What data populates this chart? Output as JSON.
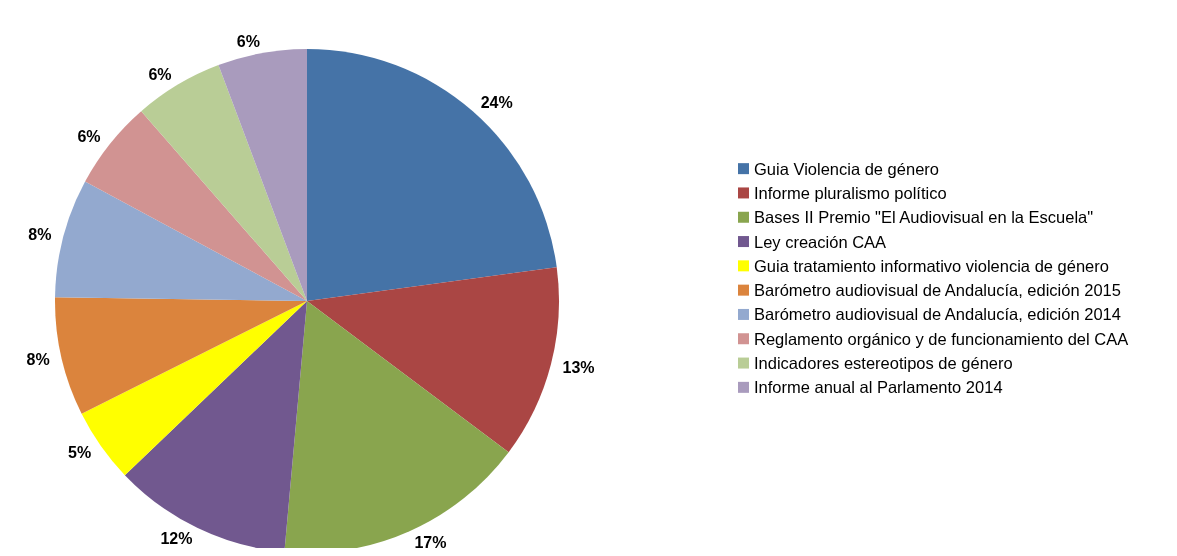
{
  "chart_data": {
    "type": "pie",
    "categories": [
      "Guia Violencia de género",
      "Informe pluralismo político",
      "Bases II Premio \"El Audiovisual en la Escuela\"",
      "Ley creación CAA",
      "Guia tratamiento informativo violencia de género",
      "Barómetro audiovisual de Andalucía, edición 2015",
      "Barómetro audiovisual de Andalucía, edición 2014",
      "Reglamento orgánico y de funcionamiento del CAA",
      "Indicadores estereotipos de género",
      "Informe anual al Parlamento 2014"
    ],
    "values": [
      24,
      13,
      17,
      12,
      5,
      8,
      8,
      6,
      6,
      6
    ],
    "value_labels": [
      "24%",
      "13%",
      "17%",
      "12%",
      "5%",
      "8%",
      "8%",
      "6%",
      "6%",
      "6%"
    ],
    "colors": [
      "#4573a7",
      "#aa4644",
      "#89a54e",
      "#71588f",
      "#ffff00",
      "#db843d",
      "#93a9cf",
      "#d19392",
      "#b9cd96",
      "#a99bbd"
    ],
    "legend": "right"
  }
}
